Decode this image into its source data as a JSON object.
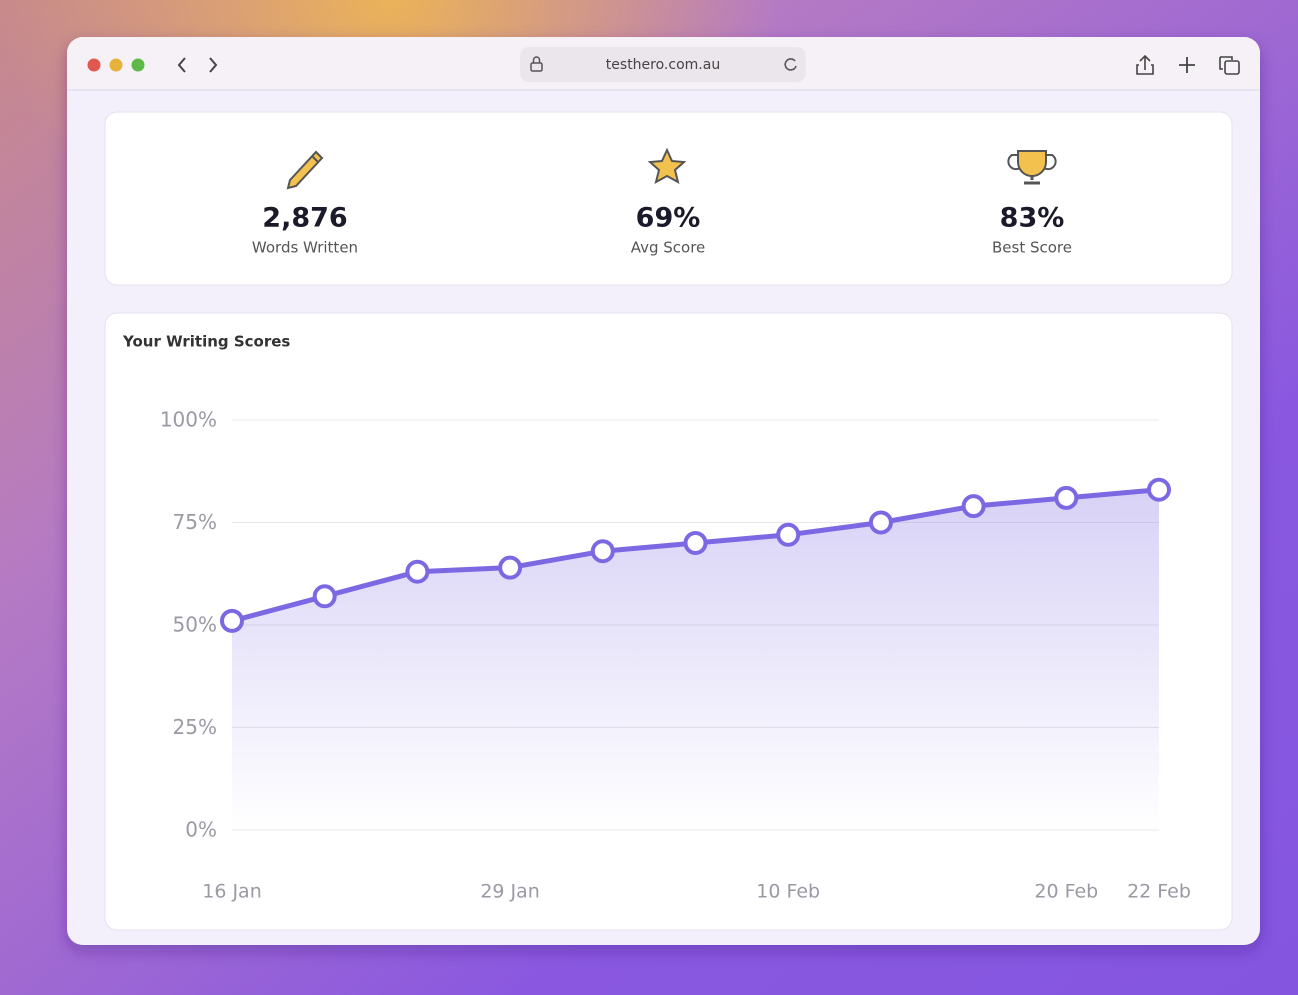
{
  "browser": {
    "url": "testhero.com.au"
  },
  "stats": [
    {
      "value": "2,876",
      "label": "Words Written"
    },
    {
      "value": "69%",
      "label": "Avg Score"
    },
    {
      "value": "83%",
      "label": "Best Score"
    }
  ],
  "chart_data": {
    "type": "line",
    "title": "Your Writing Scores",
    "categories": [
      "16 Jan",
      null,
      null,
      "29 Jan",
      null,
      null,
      "10 Feb",
      null,
      null,
      "20 Feb",
      "22 Feb"
    ],
    "values": [
      51,
      57,
      63,
      64,
      68,
      70,
      72,
      75,
      79,
      81,
      83
    ],
    "color": "#7b68e2",
    "ylim": [
      0,
      100
    ],
    "yticks": [
      {
        "value": 0,
        "label": "0%"
      },
      {
        "value": 25,
        "label": "25%"
      },
      {
        "value": 50,
        "label": "50%"
      },
      {
        "value": 75,
        "label": "75%"
      },
      {
        "value": 100,
        "label": "100%"
      }
    ],
    "grid": true
  }
}
